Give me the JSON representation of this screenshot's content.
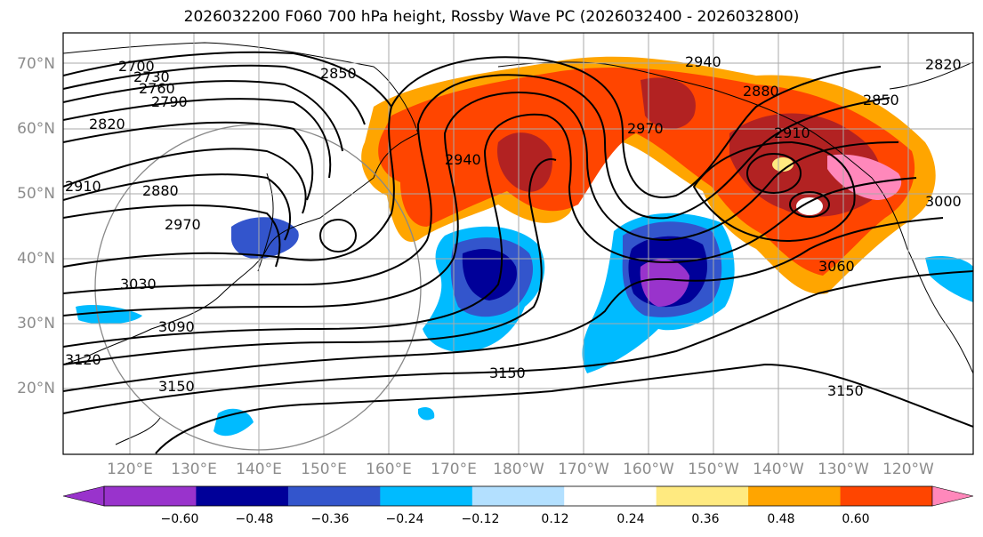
{
  "title": "2026032200 F060 700 hPa height, Rossby Wave PC (2026032400 - 2026032800)",
  "map": {
    "region": "North Pacific",
    "lat_labels": [
      "70°N",
      "60°N",
      "50°N",
      "40°N",
      "30°N",
      "20°N"
    ],
    "lon_labels": [
      "120°E",
      "130°E",
      "140°E",
      "150°E",
      "160°E",
      "170°E",
      "180°W",
      "170°W",
      "160°W",
      "150°W",
      "140°W",
      "130°W",
      "120°W"
    ],
    "contour_labels": [
      "2700",
      "2730",
      "2760",
      "2790",
      "2820",
      "2850",
      "2880",
      "2910",
      "2940",
      "2970",
      "3000",
      "3030",
      "3060",
      "3090",
      "3120",
      "3150",
      "2940",
      "2880",
      "2850",
      "2820",
      "3150",
      "3150",
      "2970",
      "2910"
    ],
    "contour_color": "#000000",
    "shading": "Rossby Wave PC anomaly"
  },
  "colorbar": {
    "ticks": [
      "−0.60",
      "−0.48",
      "−0.36",
      "−0.24",
      "−0.12",
      "0.12",
      "0.24",
      "0.36",
      "0.48",
      "0.60"
    ],
    "colors": [
      "#9933cc",
      "#000099",
      "#3355cc",
      "#00bbff",
      "#b3e0ff",
      "#ffffff",
      "#ffea80",
      "#ffa500",
      "#ff4500",
      "#b22222",
      "#ff88bb"
    ]
  }
}
